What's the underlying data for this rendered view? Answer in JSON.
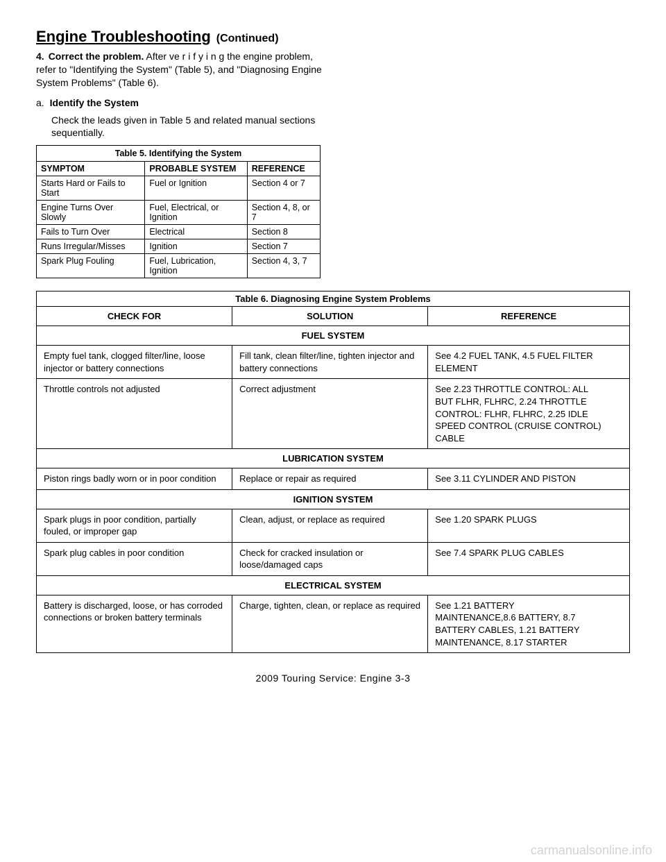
{
  "header": {
    "title": "Engine Troubleshooting",
    "paren": "(Continued)"
  },
  "intro": {
    "section_num": "4.",
    "section_bold": "Correct the problem.",
    "section_rest": " After ve r i f y i n g the engine problem, refer to \"Identifying the System\" (Table 5), and \"Diagnosing Engine System Problems\" (Table 6).",
    "sub_lead": "a.",
    "sub_title": "Identify the System",
    "sub_body": "Check the leads given in Table 5 and related manual sections sequentially."
  },
  "table5": {
    "caption": "Table 5. Identifying the System",
    "columns": [
      "SYMPTOM",
      "PROBABLE SYSTEM",
      "REFERENCE"
    ],
    "rows": [
      [
        "Starts Hard or Fails to Start",
        "Fuel or Ignition",
        "Section 4 or 7"
      ],
      [
        "Engine Turns Over Slowly",
        "Fuel, Electrical, or Ignition",
        "Section 4, 8, or 7"
      ],
      [
        "Fails to Turn Over",
        "Electrical",
        "Section 8"
      ],
      [
        "Runs Irregular/Misses",
        "Ignition",
        "Section 7"
      ],
      [
        "Spark Plug Fouling",
        "Fuel, Lubrication, Ignition",
        "Section 4, 3, 7"
      ]
    ]
  },
  "table6": {
    "caption": "Table 6. Diagnosing Engine System Problems",
    "columns": [
      "CHECK FOR",
      "SOLUTION",
      "REFERENCE"
    ],
    "groups": [
      {
        "header": "FUEL SYSTEM",
        "rows": [
          [
            "Empty fuel tank, clogged filter/line, loose injector or battery connections",
            "Fill tank, clean filter/line, tighten injector and battery connections",
            "See 4.2 FUEL TANK, 4.5 FUEL FILTER ELEMENT"
          ],
          [
            "Throttle controls not adjusted",
            "Correct adjustment",
            [
              "See 2.23 THROTTLE CONTROL: ALL",
              "BUT FLHR, FLHRC, 2.24 THROTTLE",
              "CONTROL: FLHR, FLHRC, 2.25 IDLE",
              "SPEED CONTROL (CRUISE CONTROL)",
              "CABLE"
            ]
          ]
        ]
      },
      {
        "header": "LUBRICATION SYSTEM",
        "rows": [
          [
            "Piston rings badly worn or in poor condition",
            "Replace or repair as required",
            "See 3.11 CYLINDER AND PISTON"
          ]
        ]
      },
      {
        "header": "IGNITION SYSTEM",
        "rows": [
          [
            "Spark plugs in poor condition, partially fouled, or improper gap",
            "Clean, adjust, or replace as required",
            "See 1.20 SPARK PLUGS"
          ],
          [
            "Spark plug cables in poor condition",
            "Check for cracked insulation or loose/damaged caps",
            "See 7.4 SPARK PLUG CABLES"
          ]
        ]
      },
      {
        "header": "ELECTRICAL SYSTEM",
        "rows": [
          [
            "Battery is discharged, loose, or has corroded connections or broken battery terminals",
            "Charge, tighten, clean, or replace as required",
            [
              "See 1.21 BATTERY",
              "MAINTENANCE,8.6 BATTERY, 8.7",
              "BATTERY CABLES, 1.21 BATTERY",
              "MAINTENANCE, 8.17 STARTER"
            ]
          ]
        ]
      }
    ]
  },
  "footer": "2009 Touring Service: Engine  3-3",
  "watermark": "carmanualsonline.info"
}
